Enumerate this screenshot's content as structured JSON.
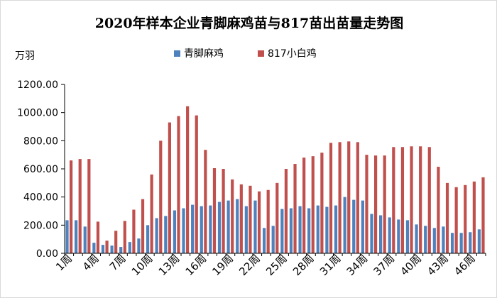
{
  "chart_data": {
    "type": "bar",
    "title": "2020年样本企业青脚麻鸡苗与817苗出苗量走势图",
    "unit_label": "万羽",
    "xlabel": "",
    "ylabel": "万羽",
    "ylim": [
      0,
      1200
    ],
    "yticks": [
      0,
      200,
      400,
      600,
      800,
      1000,
      1200
    ],
    "ytick_labels": [
      "0.00",
      "200.00",
      "400.00",
      "600.00",
      "800.00",
      "1000.00",
      "1200.00"
    ],
    "grid": false,
    "legend_position": "top",
    "categories": [
      "1周",
      "2周",
      "3周",
      "4周",
      "5周",
      "6周",
      "7周",
      "8周",
      "9周",
      "10周",
      "11周",
      "12周",
      "13周",
      "14周",
      "15周",
      "16周",
      "17周",
      "18周",
      "19周",
      "20周",
      "21周",
      "22周",
      "23周",
      "24周",
      "25周",
      "26周",
      "27周",
      "28周",
      "29周",
      "30周",
      "31周",
      "32周",
      "33周",
      "34周",
      "35周",
      "36周",
      "37周",
      "38周",
      "39周",
      "40周",
      "41周",
      "42周",
      "43周",
      "44周",
      "45周",
      "46周",
      "47周"
    ],
    "x_tick_labels": [
      "1周",
      "4周",
      "7周",
      "10周",
      "13周",
      "16周",
      "19周",
      "22周",
      "25周",
      "28周",
      "31周",
      "34周",
      "37周",
      "40周",
      "43周",
      "46周"
    ],
    "series": [
      {
        "name": "青脚麻鸡",
        "color": "#4f81bd",
        "values": [
          235,
          235,
          190,
          75,
          60,
          55,
          45,
          80,
          105,
          200,
          250,
          265,
          305,
          320,
          345,
          335,
          340,
          365,
          375,
          385,
          335,
          375,
          180,
          195,
          315,
          320,
          335,
          320,
          340,
          330,
          340,
          400,
          380,
          375,
          280,
          270,
          255,
          240,
          235,
          205,
          195,
          180,
          190,
          145,
          145,
          150,
          170
        ]
      },
      {
        "name": "817小白鸡",
        "color": "#c0504d",
        "values": [
          660,
          670,
          670,
          225,
          90,
          160,
          230,
          310,
          385,
          560,
          800,
          930,
          975,
          1045,
          980,
          735,
          605,
          600,
          525,
          490,
          480,
          440,
          450,
          500,
          600,
          635,
          680,
          690,
          715,
          785,
          790,
          795,
          790,
          700,
          695,
          695,
          755,
          755,
          760,
          760,
          755,
          615,
          500,
          470,
          485,
          510,
          540
        ]
      }
    ]
  }
}
